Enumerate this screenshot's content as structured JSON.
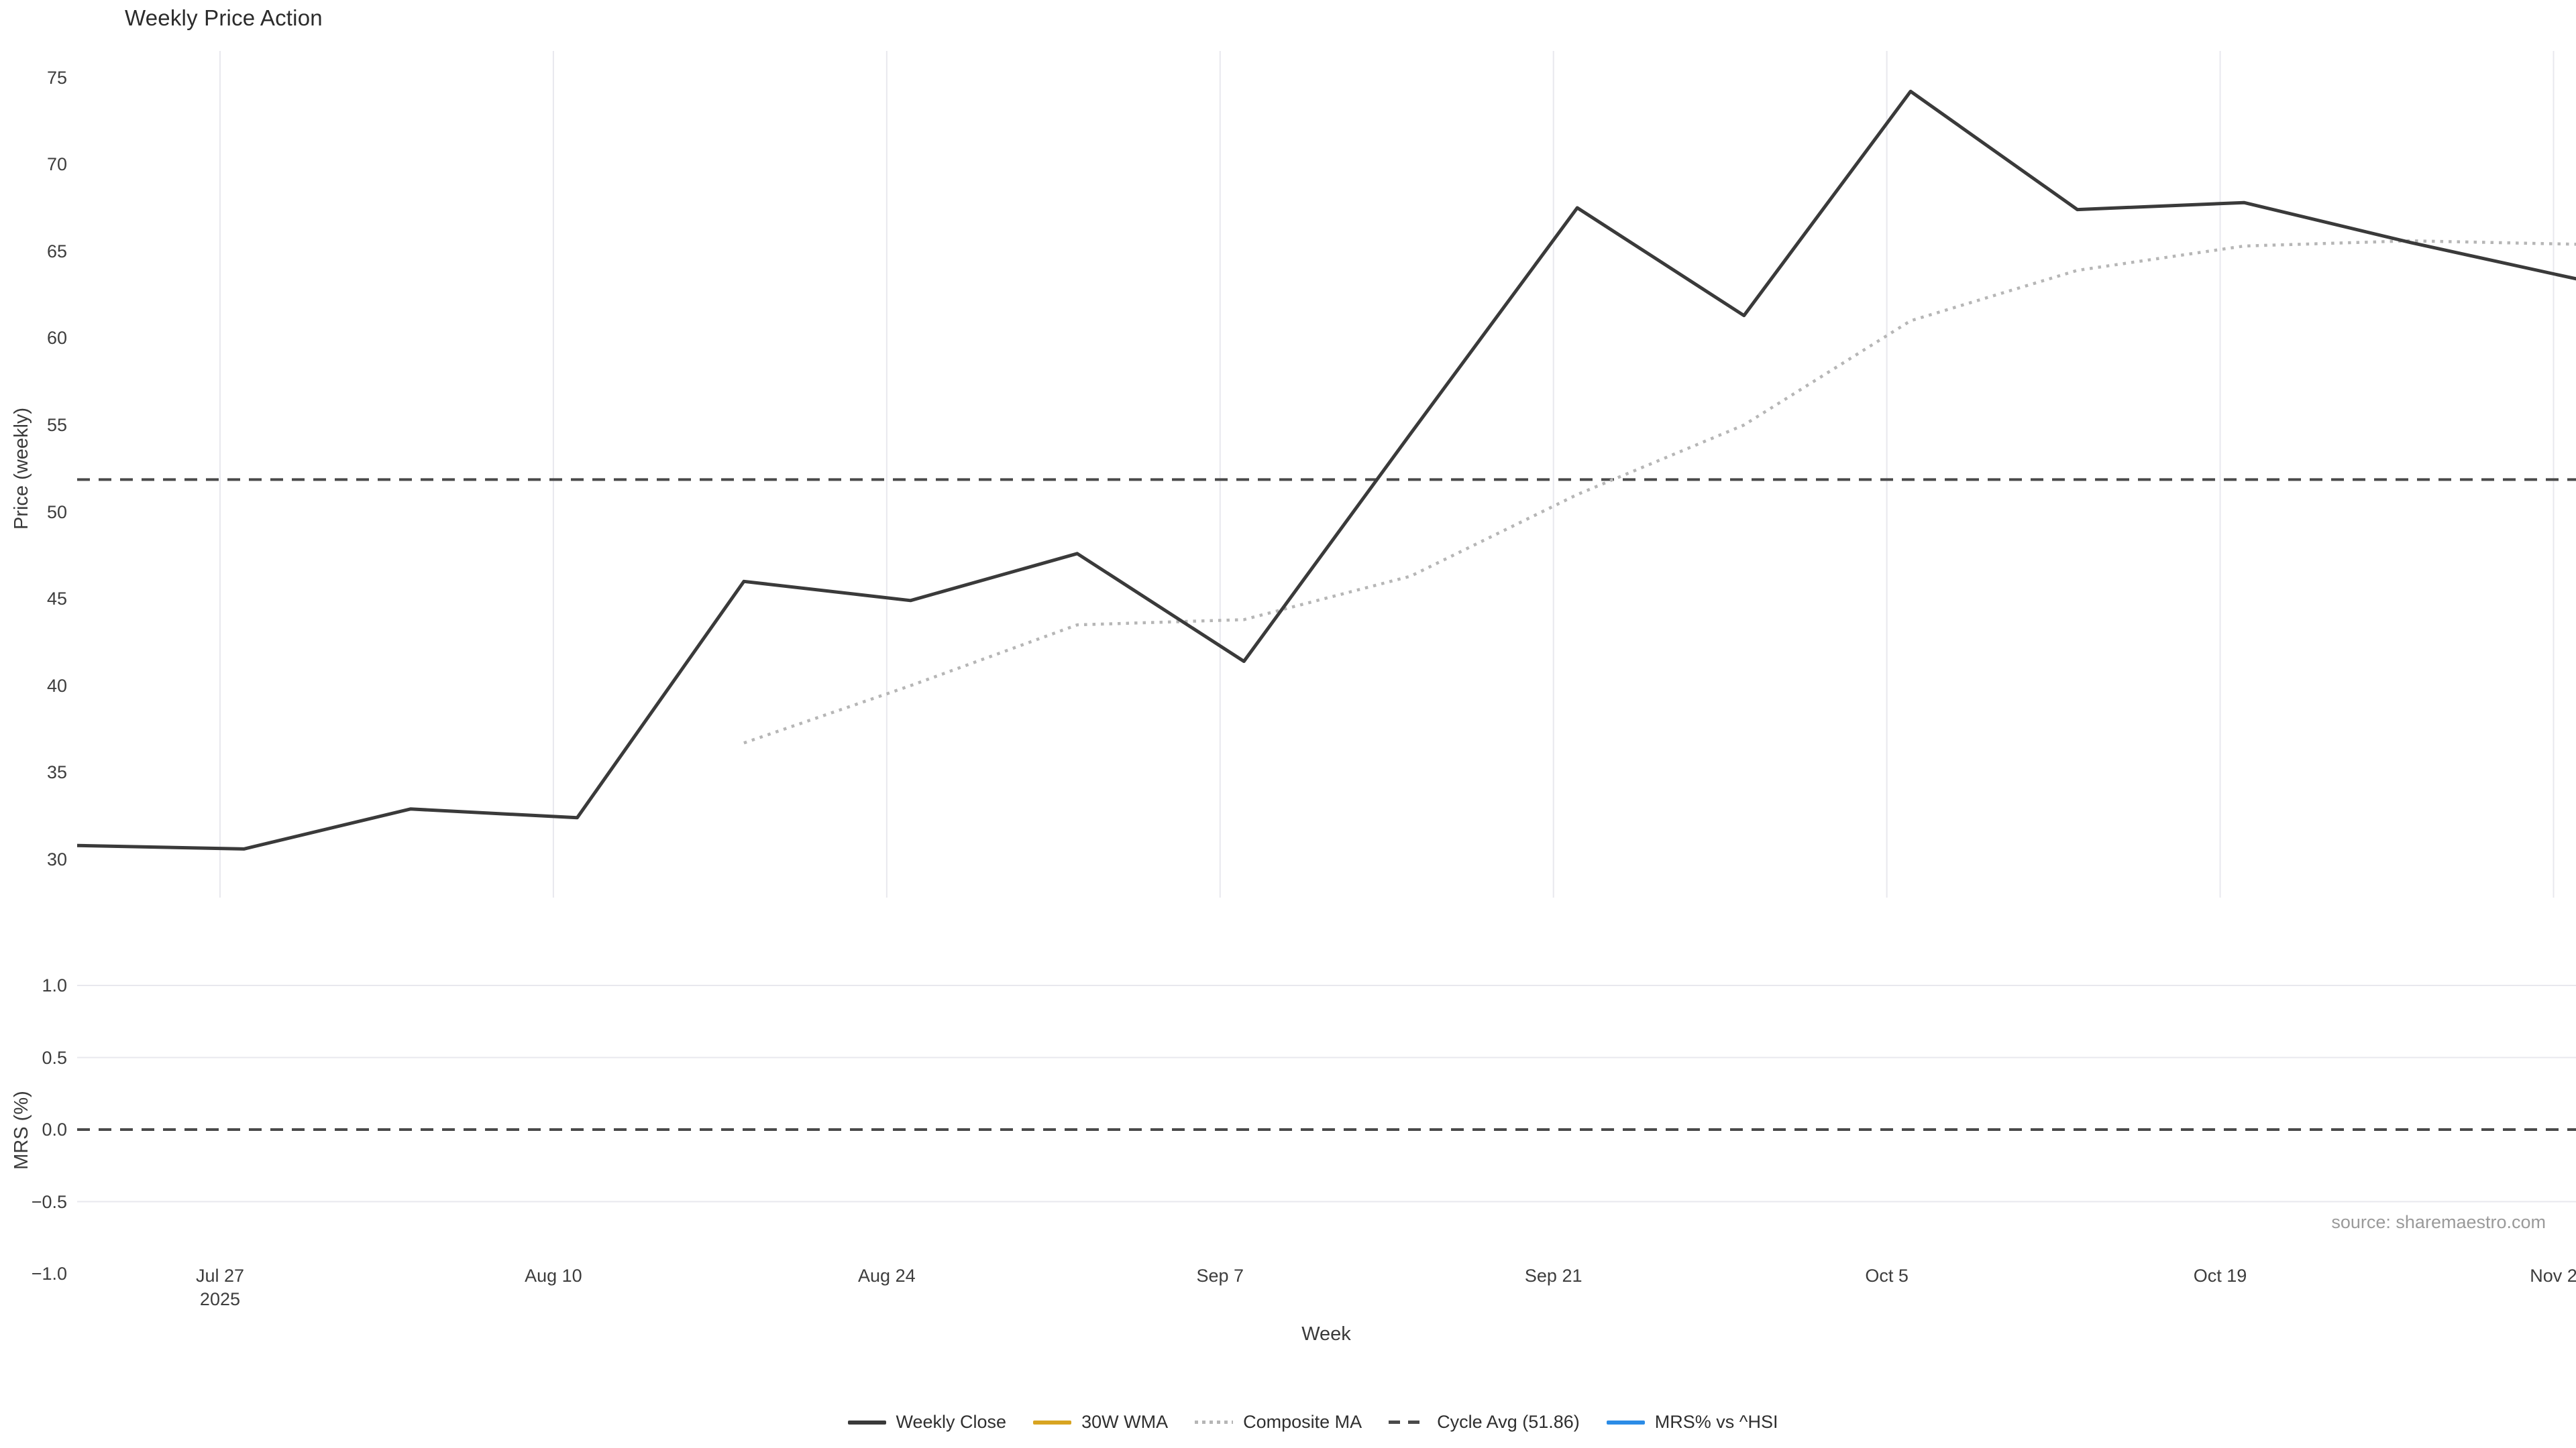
{
  "title": "Weekly Price Action",
  "source_note": "source: sharemaestro.com",
  "colors": {
    "weekly_close": "#3a3a3a",
    "wma_30w": "#d8a421",
    "composite_ma": "#b6b6b6",
    "cycle_avg": "#4a4a4a",
    "mrs": "#2b8ce6",
    "grid": "#e8e8ee",
    "text": "#3d3d3d",
    "muted_text": "#9a9a9a"
  },
  "chart_data": {
    "type": "line",
    "title": "Weekly Price Action",
    "xlabel": "Week",
    "x": {
      "weeks": [
        "Jul 21",
        "Jul 28",
        "Aug 4",
        "Aug 11",
        "Aug 18",
        "Aug 25",
        "Sep 1",
        "Sep 8",
        "Sep 15",
        "Sep 22",
        "Sep 29",
        "Oct 6",
        "Oct 13",
        "Oct 20",
        "Oct 27",
        "Nov 3"
      ],
      "ticks": [
        {
          "label": "Jul 27",
          "sublabel": "2025",
          "week_day": 6
        },
        {
          "label": "Aug 10",
          "sublabel": "",
          "week_day": 20
        },
        {
          "label": "Aug 24",
          "sublabel": "",
          "week_day": 34
        },
        {
          "label": "Sep 7",
          "sublabel": "",
          "week_day": 48
        },
        {
          "label": "Sep 21",
          "sublabel": "",
          "week_day": 62
        },
        {
          "label": "Oct 5",
          "sublabel": "",
          "week_day": 76
        },
        {
          "label": "Oct 19",
          "sublabel": "",
          "week_day": 90
        },
        {
          "label": "Nov 2",
          "sublabel": "",
          "week_day": 104
        }
      ]
    },
    "panels": [
      {
        "name": "price",
        "ylabel": "Price (weekly)",
        "ylim": [
          27.8,
          76.45
        ],
        "yticks": [
          30,
          35,
          40,
          45,
          50,
          55,
          60,
          65,
          70,
          75
        ],
        "ytick_labels": [
          "30",
          "35",
          "40",
          "45",
          "50",
          "55",
          "60",
          "65",
          "70",
          "75"
        ],
        "grid": "vertical",
        "series": [
          {
            "name": "Weekly Close",
            "style": "solid",
            "color_key": "weekly_close",
            "values": [
              30.8,
              30.6,
              32.9,
              32.4,
              46.0,
              44.9,
              47.6,
              41.4,
              54.5,
              67.5,
              61.3,
              74.2,
              67.4,
              67.8,
              65.5,
              63.4
            ]
          },
          {
            "name": "30W WMA",
            "style": "solid",
            "color_key": "wma_30w",
            "values": [
              null,
              null,
              null,
              null,
              null,
              null,
              null,
              null,
              null,
              null,
              null,
              null,
              null,
              null,
              null,
              null
            ]
          },
          {
            "name": "Composite MA",
            "style": "dotted",
            "color_key": "composite_ma",
            "values": [
              null,
              null,
              null,
              null,
              36.7,
              40.0,
              43.5,
              43.8,
              46.3,
              51.0,
              55.0,
              61.0,
              63.9,
              65.3,
              65.6,
              65.4
            ]
          }
        ],
        "hline": {
          "name": "Cycle Avg",
          "value": 51.86,
          "style": "dashed",
          "color_key": "cycle_avg"
        }
      },
      {
        "name": "mrs",
        "ylabel": "MRS (%)",
        "ylim": [
          -1.1,
          1.1
        ],
        "yticks": [
          1.0,
          0.5,
          0.0,
          -0.5,
          -1.0
        ],
        "ytick_labels": [
          "1.0",
          "0.5",
          "0.0",
          "−0.5",
          "−1.0"
        ],
        "grid": "horizontal",
        "grid_values": [
          1.0,
          0.5,
          -0.5
        ],
        "series": [
          {
            "name": "MRS% vs ^HSI",
            "style": "solid",
            "color_key": "mrs",
            "values": [
              null,
              null,
              null,
              null,
              null,
              null,
              null,
              null,
              null,
              null,
              null,
              null,
              null,
              null,
              null,
              null
            ]
          }
        ],
        "hline": {
          "name": "zero",
          "value": 0.0,
          "style": "dashed",
          "color_key": "cycle_avg"
        }
      }
    ],
    "legend": [
      {
        "label": "Weekly Close",
        "style": "solid",
        "color_key": "weekly_close"
      },
      {
        "label": "30W WMA",
        "style": "solid",
        "color_key": "wma_30w"
      },
      {
        "label": "Composite MA",
        "style": "dotted",
        "color_key": "composite_ma"
      },
      {
        "label": "Cycle Avg (51.86)",
        "style": "dashed",
        "color_key": "cycle_avg"
      },
      {
        "label": "MRS% vs ^HSI",
        "style": "solid",
        "color_key": "mrs"
      }
    ],
    "legend_position": "bottom-center"
  }
}
